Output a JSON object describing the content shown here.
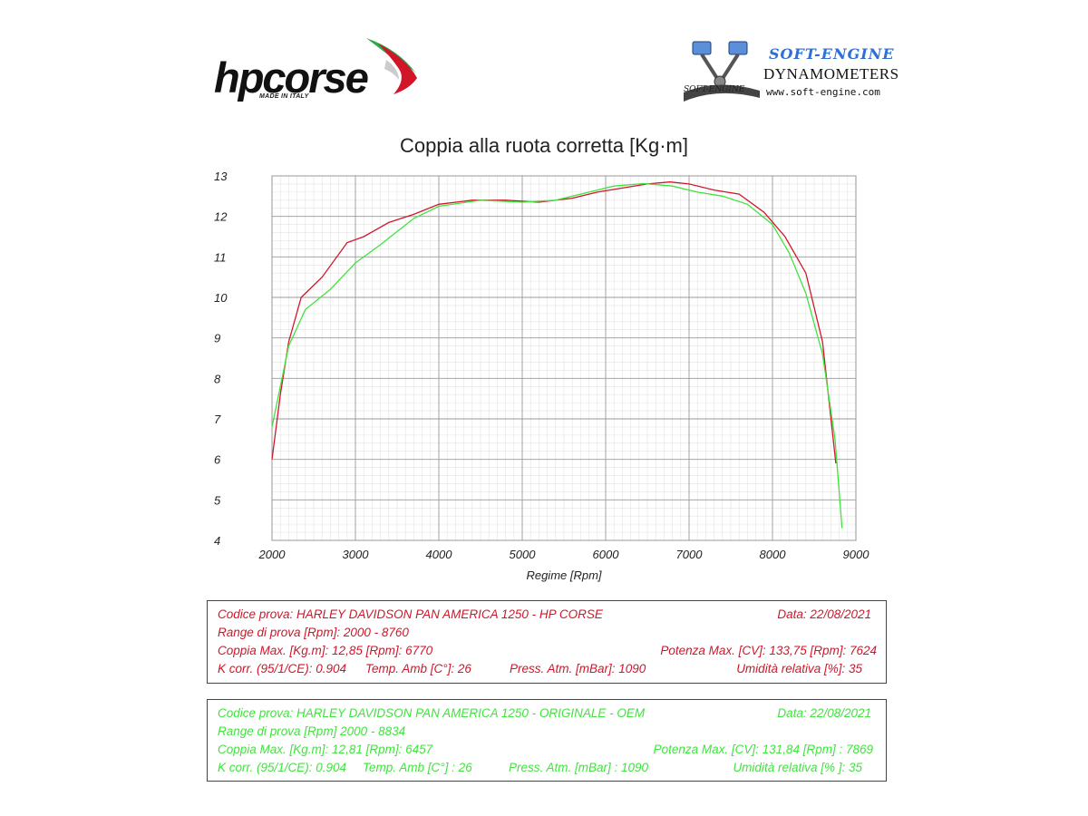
{
  "logos": {
    "hpcorse": {
      "word": "hpcorse",
      "tagline": "MADE IN ITALY"
    },
    "soft_engine": {
      "brand": "SOFT-ENGINE",
      "subtitle": "DYNAMOMETERS",
      "url": "www.soft-engine.com",
      "small": "SOFT-ENGINE"
    }
  },
  "colors": {
    "hp_corse": "#d1162a",
    "oem": "#41e33f",
    "grid": "#999999"
  },
  "chart_data": {
    "type": "line",
    "title": "Coppia alla ruota corretta [Kg·m]",
    "xlabel": "Regime [Rpm]",
    "ylabel": "",
    "xlim": [
      2000,
      9000
    ],
    "ylim": [
      4,
      13
    ],
    "xticks": [
      2000,
      3000,
      4000,
      5000,
      6000,
      7000,
      8000,
      9000
    ],
    "yticks": [
      4,
      5,
      6,
      7,
      8,
      9,
      10,
      11,
      12,
      13
    ],
    "grid": true,
    "series": [
      {
        "color": "#d1162a",
        "x": [
          2000,
          2100,
          2200,
          2350,
          2600,
          2900,
          3100,
          3400,
          3700,
          4000,
          4400,
          4800,
          5200,
          5600,
          5900,
          6200,
          6500,
          6770,
          7000,
          7300,
          7600,
          7900,
          8150,
          8400,
          8600,
          8760
        ],
        "y": [
          6.0,
          7.6,
          8.9,
          10.0,
          10.5,
          11.35,
          11.5,
          11.85,
          12.05,
          12.3,
          12.4,
          12.4,
          12.35,
          12.45,
          12.6,
          12.7,
          12.8,
          12.85,
          12.8,
          12.65,
          12.55,
          12.1,
          11.5,
          10.6,
          8.9,
          5.9
        ]
      },
      {
        "color": "#41e33f",
        "x": [
          2000,
          2100,
          2200,
          2400,
          2700,
          3000,
          3300,
          3700,
          4000,
          4500,
          5000,
          5400,
          5800,
          6100,
          6457,
          6800,
          7100,
          7400,
          7700,
          8000,
          8200,
          8400,
          8600,
          8750,
          8834
        ],
        "y": [
          6.8,
          7.8,
          8.8,
          9.7,
          10.2,
          10.85,
          11.3,
          11.95,
          12.25,
          12.4,
          12.35,
          12.4,
          12.6,
          12.75,
          12.81,
          12.75,
          12.6,
          12.5,
          12.3,
          11.8,
          11.1,
          10.1,
          8.6,
          6.5,
          4.3
        ]
      }
    ]
  },
  "test_red": {
    "line1_left": "Codice prova: HARLEY DAVIDSON  PAN AMERICA 1250 - HP CORSE",
    "line1_right": "Data: 22/08/2021",
    "line2_left": "Range di prova  [Rpm]: 2000 - 8760",
    "line3_left": "Coppia Max. [Kg.m]:  12,85 [Rpm]: 6770",
    "line3_right": "Potenza Max. [CV]:  133,75 [Rpm]:  7624",
    "line4_a": "K corr. (95/1/CE): 0.904",
    "line4_b": "Temp. Amb  [C°]: 26",
    "line4_c": "Press. Atm.  [mBar]: 1090",
    "line4_right": "Umidità relativa [%]: 35"
  },
  "test_green": {
    "line1_left": "Codice prova: HARLEY DAVIDSON  PAN AMERICA 1250 - ORIGINALE - OEM",
    "line1_right": "Data: 22/08/2021",
    "line2_left": "Range di prova [Rpm] 2000 - 8834",
    "line3_left": "Coppia Max.  [Kg.m]:  12,81  [Rpm]: 6457",
    "line3_right": "Potenza Max. [CV]:  131,84  [Rpm] : 7869",
    "line4_a": "K corr. (95/1/CE): 0.904",
    "line4_b": "Temp. Amb [C°] : 26",
    "line4_c": "Press. Atm. [mBar] : 1090",
    "line4_right": "Umidità relativa [% ]: 35"
  }
}
